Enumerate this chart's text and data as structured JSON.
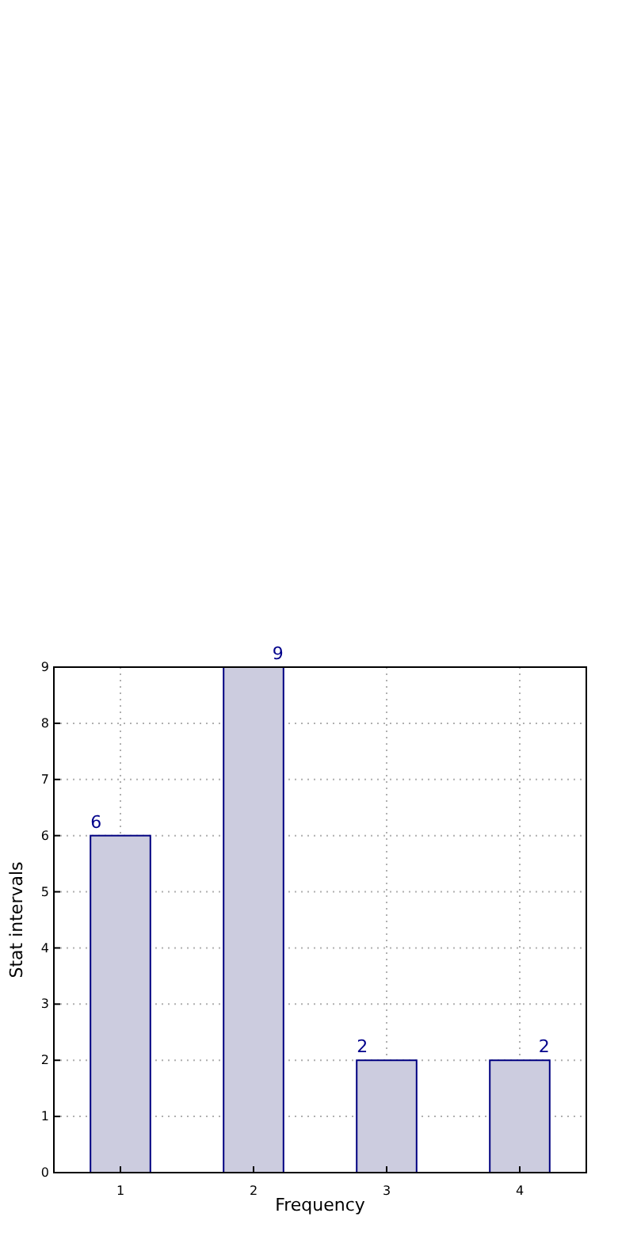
{
  "chart_data": {
    "type": "bar",
    "xlabel": "Frequency",
    "ylabel": "Stat intervals",
    "categories": [
      "1",
      "2",
      "3",
      "4"
    ],
    "values": [
      6,
      9,
      2,
      2
    ],
    "color": "#ccccdf",
    "ylim": [
      0,
      9
    ],
    "yticks": [
      0,
      1,
      2,
      3,
      4,
      5,
      6,
      7,
      8,
      9
    ],
    "grid": true,
    "data_labels": true
  }
}
